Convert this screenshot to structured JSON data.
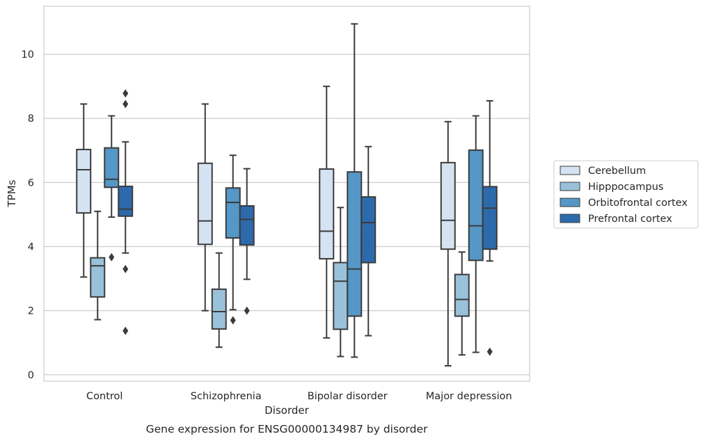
{
  "chart_data": {
    "type": "box",
    "caption": "Gene expression for ENSG00000134987 by disorder",
    "xlabel": "Disorder",
    "ylabel": "TPMs",
    "ylim": [
      -0.2,
      11.5
    ],
    "yticks": [
      0,
      2,
      4,
      6,
      8,
      10
    ],
    "grid": "horizontal",
    "legend_position": "right",
    "categories": [
      "Control",
      "Schizophrenia",
      "Bipolar disorder",
      "Major depression"
    ],
    "series": [
      {
        "name": "Cerebellum",
        "color": "#d4e2f2",
        "boxes": [
          {
            "whislo": 3.05,
            "q1": 5.05,
            "med": 6.4,
            "q3": 7.03,
            "whishi": 8.45,
            "fliers": []
          },
          {
            "whislo": 2.0,
            "q1": 4.07,
            "med": 4.8,
            "q3": 6.6,
            "whishi": 8.45,
            "fliers": []
          },
          {
            "whislo": 1.15,
            "q1": 3.62,
            "med": 4.48,
            "q3": 6.42,
            "whishi": 9.0,
            "fliers": []
          },
          {
            "whislo": 0.28,
            "q1": 3.92,
            "med": 4.82,
            "q3": 6.62,
            "whishi": 7.9,
            "fliers": []
          }
        ]
      },
      {
        "name": "Hipppocampus",
        "color": "#9ac1da",
        "boxes": [
          {
            "whislo": 1.72,
            "q1": 2.43,
            "med": 3.4,
            "q3": 3.65,
            "whishi": 5.1,
            "fliers": []
          },
          {
            "whislo": 0.86,
            "q1": 1.43,
            "med": 1.97,
            "q3": 2.67,
            "whishi": 3.8,
            "fliers": []
          },
          {
            "whislo": 0.57,
            "q1": 1.42,
            "med": 2.92,
            "q3": 3.5,
            "whishi": 5.22,
            "fliers": []
          },
          {
            "whislo": 0.62,
            "q1": 1.83,
            "med": 2.35,
            "q3": 3.13,
            "whishi": 3.83,
            "fliers": []
          }
        ]
      },
      {
        "name": "Orbitofrontal cortex",
        "color": "#5597c6",
        "boxes": [
          {
            "whislo": 4.92,
            "q1": 5.85,
            "med": 6.1,
            "q3": 7.08,
            "whishi": 8.08,
            "fliers": [
              3.67
            ]
          },
          {
            "whislo": 2.03,
            "q1": 4.27,
            "med": 5.38,
            "q3": 5.83,
            "whishi": 6.85,
            "fliers": [
              1.7
            ]
          },
          {
            "whislo": 0.55,
            "q1": 1.83,
            "med": 3.3,
            "q3": 6.33,
            "whishi": 10.95,
            "fliers": []
          },
          {
            "whislo": 0.7,
            "q1": 3.57,
            "med": 4.65,
            "q3": 7.01,
            "whishi": 8.08,
            "fliers": []
          }
        ]
      },
      {
        "name": "Prefrontal cortex",
        "color": "#2d6aac",
        "boxes": [
          {
            "whislo": 3.8,
            "q1": 4.95,
            "med": 5.17,
            "q3": 5.88,
            "whishi": 7.27,
            "fliers": [
              8.78,
              8.45,
              3.3,
              1.37
            ]
          },
          {
            "whislo": 2.98,
            "q1": 4.05,
            "med": 4.85,
            "q3": 5.27,
            "whishi": 6.43,
            "fliers": [
              2.0
            ]
          },
          {
            "whislo": 1.22,
            "q1": 3.5,
            "med": 4.75,
            "q3": 5.55,
            "whishi": 7.12,
            "fliers": []
          },
          {
            "whislo": 3.55,
            "q1": 3.92,
            "med": 5.2,
            "q3": 5.87,
            "whishi": 8.55,
            "fliers": [
              0.72
            ]
          }
        ]
      }
    ]
  }
}
